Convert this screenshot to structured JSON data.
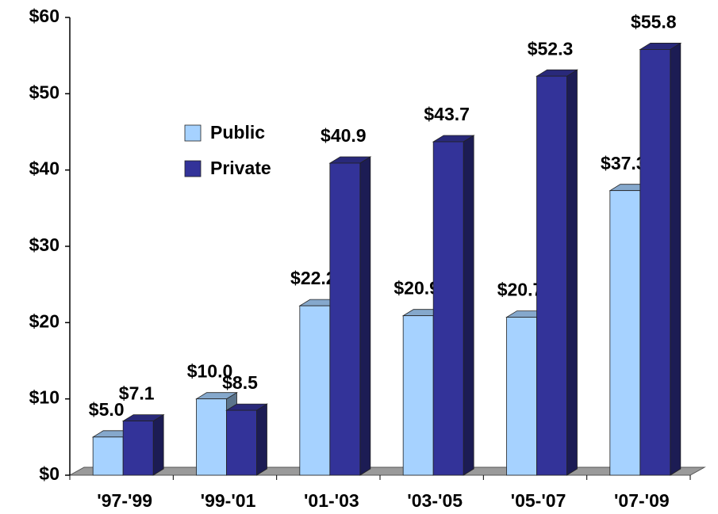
{
  "chart_data": {
    "type": "bar3d",
    "categories": [
      "'97-'99",
      "'99-'01",
      "'01-'03",
      "'03-'05",
      "'05-'07",
      "'07-'09"
    ],
    "series": [
      {
        "name": "Public",
        "color": "#a6d2ff",
        "values": [
          5.0,
          10.0,
          22.2,
          20.9,
          20.7,
          37.3
        ],
        "value_labels": [
          "$5.0",
          "$10.0",
          "$22.2",
          "$20.9",
          "$20.7",
          "$37.3"
        ]
      },
      {
        "name": "Private",
        "color": "#333399",
        "values": [
          7.1,
          8.5,
          40.9,
          43.7,
          52.3,
          55.8
        ],
        "value_labels": [
          "$7.1",
          "$8.5",
          "$40.9",
          "$43.7",
          "$52.3",
          "$55.8"
        ]
      }
    ],
    "ylim": [
      0,
      60
    ],
    "yticks": [
      {
        "value": 0,
        "label": "$0"
      },
      {
        "value": 10,
        "label": "$10"
      },
      {
        "value": 20,
        "label": "$20"
      },
      {
        "value": 30,
        "label": "$30"
      },
      {
        "value": 40,
        "label": "$40"
      },
      {
        "value": 50,
        "label": "$50"
      },
      {
        "value": 60,
        "label": "$60"
      }
    ],
    "legend": "upper left"
  }
}
